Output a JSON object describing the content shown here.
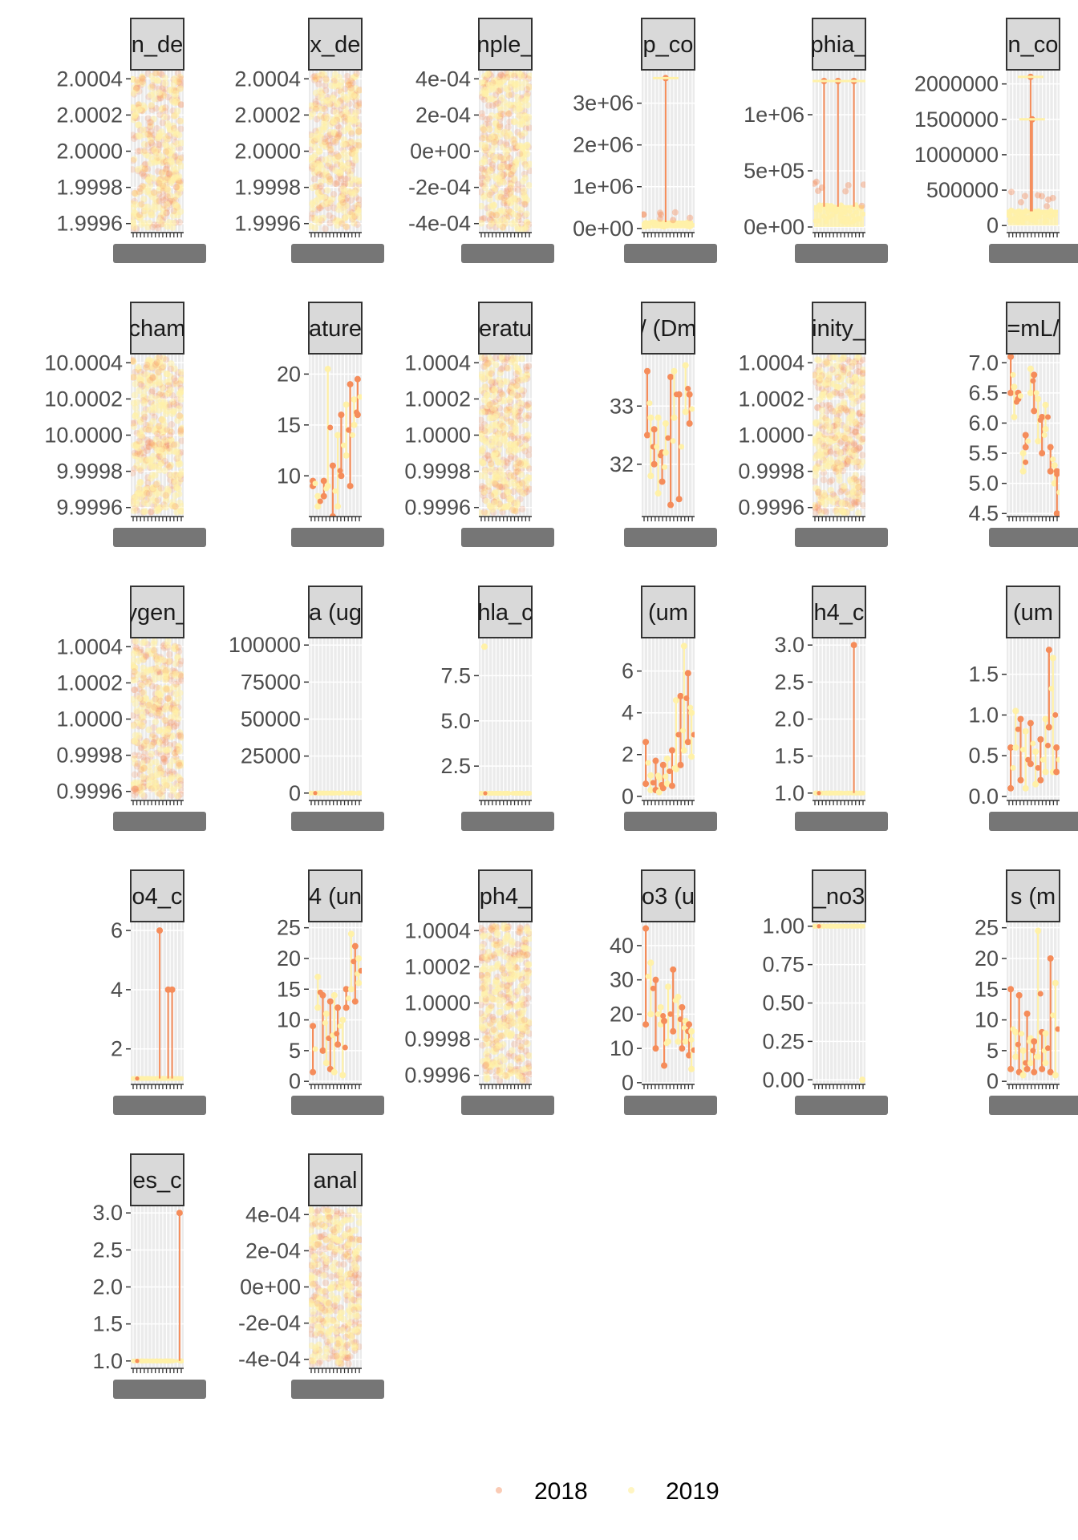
{
  "colors": {
    "y2018": "#f58c5a",
    "y2019": "#fff1a8",
    "panel_bg": "#ebebeb",
    "grid": "#ffffff",
    "strip_bg": "#d9d9d9",
    "strip_border": "#333333",
    "tick_text": "#4d4d4d"
  },
  "legend": {
    "position": "bottom",
    "items": [
      "2018",
      "2019"
    ]
  },
  "chart_data": [
    {
      "type": "scatter",
      "title": "n_de",
      "yticks": [
        "2.0004",
        "2.0002",
        "2.0000",
        "1.9998",
        "1.9996"
      ],
      "ylim": [
        1.99955,
        2.00045
      ],
      "pattern": "dense"
    },
    {
      "type": "scatter",
      "title": "x_de",
      "yticks": [
        "2.0004",
        "2.0002",
        "2.0000",
        "1.9998",
        "1.9996"
      ],
      "ylim": [
        1.99955,
        2.00045
      ],
      "pattern": "dense"
    },
    {
      "type": "scatter",
      "title": "nple_",
      "yticks": [
        "4e-04",
        "2e-04",
        "0e+00",
        "-2e-04",
        "-4e-04"
      ],
      "ylim": [
        -0.00045,
        0.00045
      ],
      "pattern": "dense"
    },
    {
      "type": "scatter",
      "title": "p_co",
      "yticks": [
        "3e+06",
        "2e+06",
        "1e+06",
        "0e+00"
      ],
      "ylim": [
        -100000,
        3800000
      ],
      "pattern": "spike",
      "spikes": [
        {
          "x": 0.45,
          "y": 3600000
        }
      ],
      "base": 150000
    },
    {
      "type": "scatter",
      "title": "phia_",
      "yticks": [
        "1e+06",
        "5e+05",
        "0e+00"
      ],
      "ylim": [
        -50000,
        1400000
      ],
      "pattern": "spike",
      "spikes": [
        {
          "x": 0.2,
          "y": 1300000
        },
        {
          "x": 0.48,
          "y": 1300000
        },
        {
          "x": 0.8,
          "y": 1300000
        }
      ],
      "base": 180000
    },
    {
      "type": "scatter",
      "title": "n_co",
      "yticks": [
        "2000000",
        "1500000",
        "1000000",
        "500000",
        "0"
      ],
      "ylim": [
        -100000,
        2200000
      ],
      "pattern": "spike",
      "spikes": [
        {
          "x": 0.45,
          "y": 2100000
        },
        {
          "x": 0.48,
          "y": 1500000
        }
      ],
      "base": 200000
    },
    {
      "type": "scatter",
      "title": "cham",
      "yticks": [
        "10.0004",
        "10.0002",
        "10.0000",
        "9.9998",
        "9.9996"
      ],
      "ylim": [
        9.99955,
        10.00045
      ],
      "pattern": "dense"
    },
    {
      "type": "scatter",
      "title": "ature",
      "yticks": [
        "20",
        "15",
        "10"
      ],
      "ylim": [
        6,
        22
      ],
      "pattern": "lollipop",
      "pairs": [
        [
          0.05,
          9,
          9.5
        ],
        [
          0.15,
          7,
          8
        ],
        [
          0.27,
          8,
          9.5
        ],
        [
          0.35,
          9,
          20.5
        ],
        [
          0.45,
          6,
          11
        ],
        [
          0.55,
          7,
          14
        ],
        [
          0.62,
          10,
          16
        ],
        [
          0.72,
          12,
          17
        ],
        [
          0.8,
          9,
          19
        ],
        [
          0.88,
          15,
          17.5
        ],
        [
          0.95,
          16,
          19.5
        ]
      ]
    },
    {
      "type": "scatter",
      "title": "eratu",
      "yticks": [
        "1.0004",
        "1.0002",
        "1.0000",
        "0.9998",
        "0.9996"
      ],
      "ylim": [
        0.99955,
        1.00045
      ],
      "pattern": "dense"
    },
    {
      "type": "scatter",
      "title": "/ (Dm",
      "yticks": [
        "33",
        "32"
      ],
      "ylim": [
        31.1,
        33.9
      ],
      "pattern": "lollipop",
      "pairs": [
        [
          0.08,
          32.5,
          33.6
        ],
        [
          0.15,
          31.8,
          32.8
        ],
        [
          0.22,
          32,
          32.6
        ],
        [
          0.3,
          31.5,
          32.8
        ],
        [
          0.38,
          31.7,
          32.2
        ],
        [
          0.45,
          32.2,
          32.7
        ],
        [
          0.55,
          31.3,
          33.5
        ],
        [
          0.62,
          32.8,
          33.6
        ],
        [
          0.72,
          31.4,
          33.2
        ],
        [
          0.85,
          32.9,
          33.7
        ],
        [
          0.93,
          32.7,
          33.2
        ]
      ]
    },
    {
      "type": "scatter",
      "title": "inity_",
      "yticks": [
        "1.0004",
        "1.0002",
        "1.0000",
        "0.9998",
        "0.9996"
      ],
      "ylim": [
        0.99955,
        1.00045
      ],
      "pattern": "dense"
    },
    {
      "type": "scatter",
      "title": "=mL/",
      "yticks": [
        "7.0",
        "6.5",
        "6.0",
        "5.5",
        "5.0",
        "4.5"
      ],
      "ylim": [
        4.45,
        7.15
      ],
      "pattern": "lollipop",
      "pairs": [
        [
          0.05,
          6.5,
          7.1
        ],
        [
          0.12,
          6.1,
          6.6
        ],
        [
          0.2,
          6.4,
          6.5
        ],
        [
          0.3,
          5.2,
          5.5
        ],
        [
          0.35,
          5.6,
          5.8
        ],
        [
          0.45,
          6.5,
          6.9
        ],
        [
          0.52,
          6.2,
          6.8
        ],
        [
          0.6,
          5.7,
          6.4
        ],
        [
          0.68,
          5.5,
          6.1
        ],
        [
          0.75,
          5.9,
          6.3
        ],
        [
          0.85,
          5.2,
          5.6
        ],
        [
          0.93,
          5.0,
          5.3
        ],
        [
          0.98,
          4.5,
          5.2
        ]
      ]
    },
    {
      "type": "scatter",
      "title": "ygen_",
      "yticks": [
        "1.0004",
        "1.0002",
        "1.0000",
        "0.9998",
        "0.9996"
      ],
      "ylim": [
        0.99955,
        1.00045
      ],
      "pattern": "dense"
    },
    {
      "type": "scatter",
      "title": "a (ug",
      "yticks": [
        "100000",
        "75000",
        "50000",
        "25000",
        "0"
      ],
      "ylim": [
        -5000,
        105000
      ],
      "pattern": "flat",
      "level": 0
    },
    {
      "type": "scatter",
      "title": "hla_c",
      "yticks": [
        "7.5",
        "5.0",
        "2.5"
      ],
      "ylim": [
        0.6,
        9.6
      ],
      "pattern": "flat",
      "level": 1.0,
      "extra": [
        {
          "x": 0.08,
          "y": 9.1
        }
      ]
    },
    {
      "type": "scatter",
      "title": "(um",
      "yticks": [
        "6",
        "4",
        "2",
        "0"
      ],
      "ylim": [
        -0.2,
        7.6
      ],
      "pattern": "lollipop",
      "pairs": [
        [
          0.05,
          0.6,
          2.6
        ],
        [
          0.15,
          0.3,
          1.0
        ],
        [
          0.25,
          0.3,
          1.7
        ],
        [
          0.32,
          0.2,
          0.9
        ],
        [
          0.4,
          0.4,
          1.5
        ],
        [
          0.48,
          0.6,
          1.8
        ],
        [
          0.58,
          0.5,
          2.2
        ],
        [
          0.66,
          1.3,
          4.6
        ],
        [
          0.75,
          1.5,
          4.8
        ],
        [
          0.82,
          2.2,
          7.2
        ],
        [
          0.9,
          2.6,
          5.9
        ],
        [
          0.97,
          1.9,
          4.0
        ]
      ]
    },
    {
      "type": "scatter",
      "title": "h4_c",
      "yticks": [
        "3.0",
        "2.5",
        "2.0",
        "1.5",
        "1.0"
      ],
      "ylim": [
        0.9,
        3.1
      ],
      "pattern": "flat",
      "level": 1.0,
      "spikes": [
        {
          "x": 0.8,
          "y": 3.0
        }
      ]
    },
    {
      "type": "scatter",
      "title": "(um",
      "yticks": [
        "1.5",
        "1.0",
        "0.5",
        "0.0"
      ],
      "ylim": [
        -0.05,
        1.95
      ],
      "pattern": "lollipop",
      "pairs": [
        [
          0.05,
          0.1,
          0.6
        ],
        [
          0.15,
          0.6,
          1.05
        ],
        [
          0.25,
          0.2,
          0.95
        ],
        [
          0.35,
          0.1,
          0.8
        ],
        [
          0.45,
          0.4,
          0.9
        ],
        [
          0.55,
          0.15,
          0.55
        ],
        [
          0.65,
          0.2,
          0.7
        ],
        [
          0.75,
          0.3,
          0.95
        ],
        [
          0.82,
          0.85,
          1.8
        ],
        [
          0.9,
          0.3,
          1.7
        ],
        [
          0.97,
          0.3,
          0.6
        ]
      ]
    },
    {
      "type": "scatter",
      "title": "o4_c",
      "yticks": [
        "6",
        "4",
        "2"
      ],
      "ylim": [
        0.8,
        6.3
      ],
      "pattern": "flat",
      "level": 1.0,
      "spikes": [
        {
          "x": 0.55,
          "y": 6.0
        },
        {
          "x": 0.72,
          "y": 4.0
        },
        {
          "x": 0.8,
          "y": 4.0
        }
      ]
    },
    {
      "type": "scatter",
      "title": "4 (un",
      "yticks": [
        "25",
        "20",
        "15",
        "10",
        "5",
        "0"
      ],
      "ylim": [
        -0.5,
        26
      ],
      "pattern": "lollipop",
      "pairs": [
        [
          0.05,
          1.5,
          9
        ],
        [
          0.15,
          12,
          17
        ],
        [
          0.25,
          5,
          14
        ],
        [
          0.32,
          3,
          11
        ],
        [
          0.4,
          2,
          13
        ],
        [
          0.48,
          1.5,
          14
        ],
        [
          0.55,
          6,
          12
        ],
        [
          0.65,
          1,
          10
        ],
        [
          0.72,
          12,
          15
        ],
        [
          0.82,
          15,
          24
        ],
        [
          0.9,
          13,
          22
        ],
        [
          0.97,
          16,
          20
        ]
      ]
    },
    {
      "type": "scatter",
      "title": "ph4_",
      "yticks": [
        "1.0004",
        "1.0002",
        "1.0000",
        "0.9998",
        "0.9996"
      ],
      "ylim": [
        0.99955,
        1.00045
      ],
      "pattern": "dense"
    },
    {
      "type": "scatter",
      "title": "o3 (u",
      "yticks": [
        "40",
        "30",
        "20",
        "10",
        "0"
      ],
      "ylim": [
        -0.5,
        47
      ],
      "pattern": "lollipop",
      "pairs": [
        [
          0.05,
          17,
          45
        ],
        [
          0.15,
          20,
          35
        ],
        [
          0.25,
          10,
          30
        ],
        [
          0.35,
          17,
          22
        ],
        [
          0.42,
          5,
          18
        ],
        [
          0.5,
          12,
          28
        ],
        [
          0.6,
          15,
          33
        ],
        [
          0.7,
          12,
          25
        ],
        [
          0.78,
          10,
          22
        ],
        [
          0.85,
          12,
          18
        ],
        [
          0.92,
          8,
          17
        ],
        [
          0.97,
          4,
          15
        ]
      ]
    },
    {
      "type": "scatter",
      "title": "_no3",
      "yticks": [
        "1.00",
        "0.75",
        "0.50",
        "0.25",
        "0.00"
      ],
      "ylim": [
        -0.03,
        1.03
      ],
      "pattern": "flat",
      "level": 1.0,
      "extra": [
        {
          "x": 0.97,
          "y": 0.0
        }
      ]
    },
    {
      "type": "scatter",
      "title": "s (m",
      "yticks": [
        "25",
        "20",
        "15",
        "10",
        "5",
        "0"
      ],
      "ylim": [
        -0.5,
        26
      ],
      "pattern": "lollipop",
      "pairs": [
        [
          0.05,
          2,
          15
        ],
        [
          0.15,
          4,
          8
        ],
        [
          0.22,
          1.5,
          14
        ],
        [
          0.3,
          1,
          5
        ],
        [
          0.38,
          2,
          11
        ],
        [
          0.45,
          3,
          7
        ],
        [
          0.52,
          1.5,
          6.5
        ],
        [
          0.6,
          4,
          24.5
        ],
        [
          0.68,
          2,
          8
        ],
        [
          0.75,
          3,
          7.8
        ],
        [
          0.85,
          1.5,
          20
        ],
        [
          0.95,
          1,
          16
        ]
      ]
    },
    {
      "type": "scatter",
      "title": "es_c",
      "yticks": [
        "3.0",
        "2.5",
        "2.0",
        "1.5",
        "1.0"
      ],
      "ylim": [
        0.9,
        3.1
      ],
      "pattern": "flat",
      "level": 1.0,
      "spikes": [
        {
          "x": 0.95,
          "y": 3.0
        }
      ]
    },
    {
      "type": "scatter",
      "title": "anal",
      "yticks": [
        "4e-04",
        "2e-04",
        "0e+00",
        "-2e-04",
        "-4e-04"
      ],
      "ylim": [
        -0.00045,
        0.00045
      ],
      "pattern": "dense"
    }
  ]
}
